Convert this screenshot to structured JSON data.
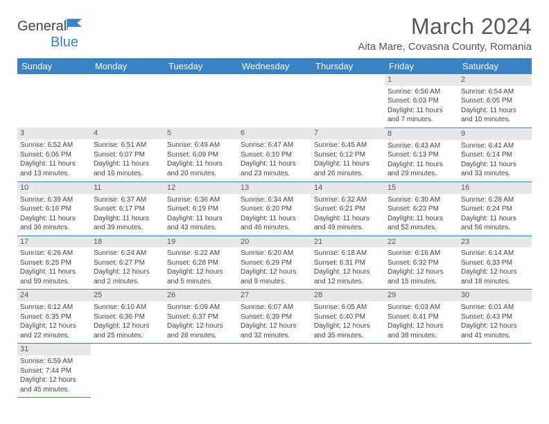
{
  "brand": {
    "name_part1": "General",
    "name_part2": "Blue"
  },
  "title": "March 2024",
  "location": "Aita Mare, Covasna County, Romania",
  "colors": {
    "header_bg": "#3b82c4",
    "header_text": "#ffffff",
    "daynum_bg": "#e8e8e8",
    "border": "#3b82c4",
    "text": "#444444"
  },
  "day_labels": [
    "Sunday",
    "Monday",
    "Tuesday",
    "Wednesday",
    "Thursday",
    "Friday",
    "Saturday"
  ],
  "weeks": [
    [
      null,
      null,
      null,
      null,
      null,
      {
        "n": "1",
        "sunrise": "6:56 AM",
        "sunset": "6:03 PM",
        "daylight": "11 hours and 7 minutes."
      },
      {
        "n": "2",
        "sunrise": "6:54 AM",
        "sunset": "6:05 PM",
        "daylight": "11 hours and 10 minutes."
      }
    ],
    [
      {
        "n": "3",
        "sunrise": "6:52 AM",
        "sunset": "6:06 PM",
        "daylight": "11 hours and 13 minutes."
      },
      {
        "n": "4",
        "sunrise": "6:51 AM",
        "sunset": "6:07 PM",
        "daylight": "11 hours and 16 minutes."
      },
      {
        "n": "5",
        "sunrise": "6:49 AM",
        "sunset": "6:09 PM",
        "daylight": "11 hours and 20 minutes."
      },
      {
        "n": "6",
        "sunrise": "6:47 AM",
        "sunset": "6:10 PM",
        "daylight": "11 hours and 23 minutes."
      },
      {
        "n": "7",
        "sunrise": "6:45 AM",
        "sunset": "6:12 PM",
        "daylight": "11 hours and 26 minutes."
      },
      {
        "n": "8",
        "sunrise": "6:43 AM",
        "sunset": "6:13 PM",
        "daylight": "11 hours and 29 minutes."
      },
      {
        "n": "9",
        "sunrise": "6:41 AM",
        "sunset": "6:14 PM",
        "daylight": "11 hours and 33 minutes."
      }
    ],
    [
      {
        "n": "10",
        "sunrise": "6:39 AM",
        "sunset": "6:16 PM",
        "daylight": "11 hours and 36 minutes."
      },
      {
        "n": "11",
        "sunrise": "6:37 AM",
        "sunset": "6:17 PM",
        "daylight": "11 hours and 39 minutes."
      },
      {
        "n": "12",
        "sunrise": "6:36 AM",
        "sunset": "6:19 PM",
        "daylight": "11 hours and 43 minutes."
      },
      {
        "n": "13",
        "sunrise": "6:34 AM",
        "sunset": "6:20 PM",
        "daylight": "11 hours and 46 minutes."
      },
      {
        "n": "14",
        "sunrise": "6:32 AM",
        "sunset": "6:21 PM",
        "daylight": "11 hours and 49 minutes."
      },
      {
        "n": "15",
        "sunrise": "6:30 AM",
        "sunset": "6:23 PM",
        "daylight": "11 hours and 52 minutes."
      },
      {
        "n": "16",
        "sunrise": "6:28 AM",
        "sunset": "6:24 PM",
        "daylight": "11 hours and 56 minutes."
      }
    ],
    [
      {
        "n": "17",
        "sunrise": "6:26 AM",
        "sunset": "6:25 PM",
        "daylight": "11 hours and 59 minutes."
      },
      {
        "n": "18",
        "sunrise": "6:24 AM",
        "sunset": "6:27 PM",
        "daylight": "12 hours and 2 minutes."
      },
      {
        "n": "19",
        "sunrise": "6:22 AM",
        "sunset": "6:28 PM",
        "daylight": "12 hours and 5 minutes."
      },
      {
        "n": "20",
        "sunrise": "6:20 AM",
        "sunset": "6:29 PM",
        "daylight": "12 hours and 9 minutes."
      },
      {
        "n": "21",
        "sunrise": "6:18 AM",
        "sunset": "6:31 PM",
        "daylight": "12 hours and 12 minutes."
      },
      {
        "n": "22",
        "sunrise": "6:16 AM",
        "sunset": "6:32 PM",
        "daylight": "12 hours and 15 minutes."
      },
      {
        "n": "23",
        "sunrise": "6:14 AM",
        "sunset": "6:33 PM",
        "daylight": "12 hours and 18 minutes."
      }
    ],
    [
      {
        "n": "24",
        "sunrise": "6:12 AM",
        "sunset": "6:35 PM",
        "daylight": "12 hours and 22 minutes."
      },
      {
        "n": "25",
        "sunrise": "6:10 AM",
        "sunset": "6:36 PM",
        "daylight": "12 hours and 25 minutes."
      },
      {
        "n": "26",
        "sunrise": "6:09 AM",
        "sunset": "6:37 PM",
        "daylight": "12 hours and 28 minutes."
      },
      {
        "n": "27",
        "sunrise": "6:07 AM",
        "sunset": "6:39 PM",
        "daylight": "12 hours and 32 minutes."
      },
      {
        "n": "28",
        "sunrise": "6:05 AM",
        "sunset": "6:40 PM",
        "daylight": "12 hours and 35 minutes."
      },
      {
        "n": "29",
        "sunrise": "6:03 AM",
        "sunset": "6:41 PM",
        "daylight": "12 hours and 38 minutes."
      },
      {
        "n": "30",
        "sunrise": "6:01 AM",
        "sunset": "6:43 PM",
        "daylight": "12 hours and 41 minutes."
      }
    ],
    [
      {
        "n": "31",
        "sunrise": "6:59 AM",
        "sunset": "7:44 PM",
        "daylight": "12 hours and 45 minutes."
      },
      null,
      null,
      null,
      null,
      null,
      null
    ]
  ],
  "labels": {
    "sunrise": "Sunrise:",
    "sunset": "Sunset:",
    "daylight": "Daylight:"
  }
}
